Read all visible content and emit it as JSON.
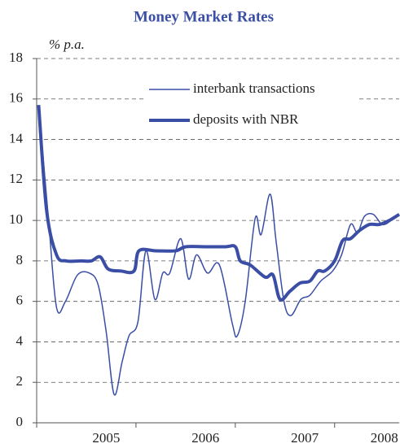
{
  "chart_data": {
    "type": "line",
    "title": "Money Market Rates",
    "y_unit_label": "% p.a.",
    "xlim": [
      2005,
      2008.65
    ],
    "xticks": [
      {
        "value": 2005.7,
        "label": "2005"
      },
      {
        "value": 2006.7,
        "label": "2006"
      },
      {
        "value": 2007.7,
        "label": "2007"
      },
      {
        "value": 2008.5,
        "label": "2008"
      }
    ],
    "ylim": [
      0,
      18
    ],
    "yticks": [
      0,
      2,
      4,
      6,
      8,
      10,
      12,
      14,
      16,
      18
    ],
    "grid": true,
    "series": [
      {
        "name": "interbank transactions",
        "color": "#3a4ea5",
        "width": 1.5,
        "x": [
          2005.02,
          2005.12,
          2005.2,
          2005.29,
          2005.41,
          2005.53,
          2005.62,
          2005.7,
          2005.78,
          2005.86,
          2005.93,
          2006.02,
          2006.1,
          2006.19,
          2006.27,
          2006.34,
          2006.45,
          2006.53,
          2006.61,
          2006.72,
          2006.84,
          2006.97,
          2007.02,
          2007.1,
          2007.2,
          2007.26,
          2007.35,
          2007.41,
          2007.49,
          2007.56,
          2007.66,
          2007.75,
          2007.86,
          2007.98,
          2008.07,
          2008.16,
          2008.23,
          2008.3,
          2008.39,
          2008.48,
          2008.57,
          2008.65
        ],
        "values": [
          15.7,
          10,
          5.7,
          6.0,
          7.3,
          7.4,
          6.8,
          4.5,
          1.4,
          3.0,
          4.3,
          5.0,
          8.5,
          6.1,
          7.4,
          7.4,
          9.1,
          7.1,
          8.3,
          7.4,
          7.8,
          4.9,
          4.3,
          6.0,
          10.1,
          9.3,
          11.3,
          9.0,
          6.0,
          5.3,
          6.1,
          6.3,
          7.0,
          7.5,
          8.3,
          9.8,
          9.4,
          10.2,
          10.3,
          9.8,
          10.0,
          10.3
        ]
      },
      {
        "name": "deposits with NBR",
        "color": "#3a4ea5",
        "width": 4,
        "x": [
          2005.02,
          2005.1,
          2005.2,
          2005.3,
          2005.45,
          2005.55,
          2005.64,
          2005.72,
          2005.85,
          2005.98,
          2006.03,
          2006.2,
          2006.4,
          2006.5,
          2006.7,
          2006.9,
          2007.0,
          2007.05,
          2007.15,
          2007.3,
          2007.38,
          2007.45,
          2007.55,
          2007.65,
          2007.75,
          2007.83,
          2007.9,
          2008.0,
          2008.08,
          2008.16,
          2008.25,
          2008.35,
          2008.45,
          2008.55,
          2008.65
        ],
        "values": [
          15.7,
          10.5,
          8.3,
          8.0,
          8.0,
          8.0,
          8.2,
          7.6,
          7.5,
          7.5,
          8.5,
          8.5,
          8.5,
          8.7,
          8.7,
          8.7,
          8.7,
          8.0,
          7.8,
          7.2,
          7.3,
          6.1,
          6.5,
          6.9,
          7.0,
          7.5,
          7.5,
          8.0,
          9.0,
          9.1,
          9.5,
          9.8,
          9.8,
          10.0,
          10.3
        ]
      }
    ]
  }
}
